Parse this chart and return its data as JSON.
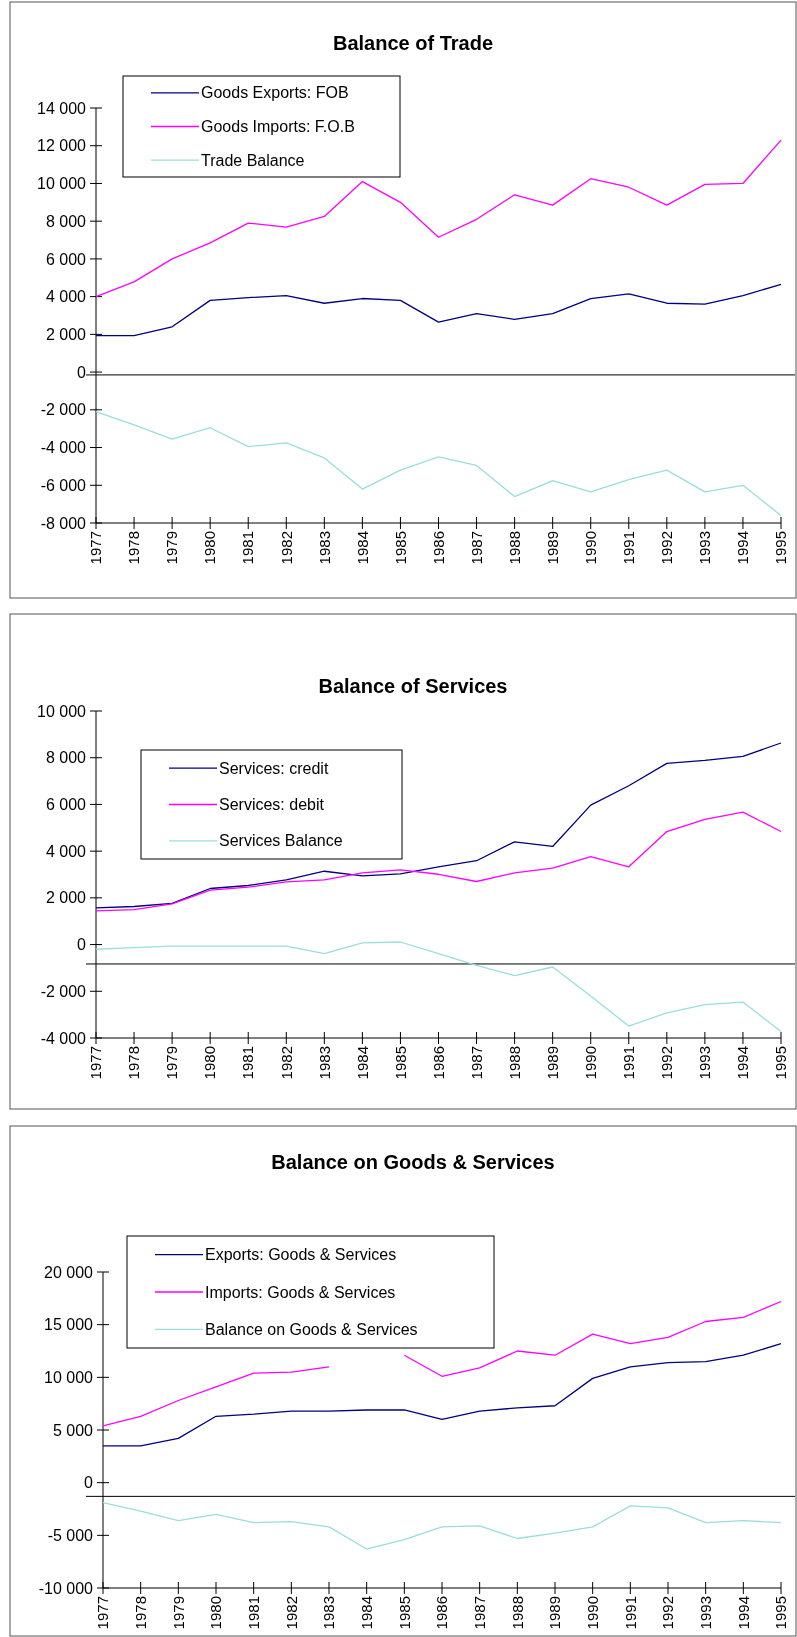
{
  "chart_data": [
    {
      "type": "line",
      "title": "Balance of Trade",
      "categories": [
        "1977",
        "1978",
        "1979",
        "1980",
        "1981",
        "1982",
        "1983",
        "1984",
        "1985",
        "1986",
        "1987",
        "1988",
        "1989",
        "1990",
        "1991",
        "1992",
        "1993",
        "1994",
        "1995"
      ],
      "series": [
        {
          "name": "Goods Exports: FOB",
          "color": "#000080",
          "values": [
            1930,
            1930,
            2400,
            3800,
            3950,
            4050,
            3650,
            3900,
            3800,
            2650,
            3100,
            2800,
            3100,
            3900,
            4150,
            3650,
            3600,
            4050,
            4650
          ]
        },
        {
          "name": "Goods Imports: F.O.B",
          "color": "#ff00ff",
          "values": [
            4000,
            4780,
            6000,
            6850,
            7900,
            7680,
            8250,
            10100,
            9000,
            7150,
            8100,
            9400,
            8850,
            10250,
            9800,
            8850,
            9950,
            10000,
            12300
          ]
        },
        {
          "name": "Trade Balance",
          "color": "#99dddd",
          "values": [
            -2100,
            -2800,
            -3550,
            -2950,
            -3950,
            -3750,
            -4550,
            -6200,
            -5200,
            -4500,
            -4950,
            -6600,
            -5750,
            -6350,
            -5700,
            -5200,
            -6350,
            -6000,
            -7600
          ]
        }
      ],
      "ylim": [
        -8000,
        14000
      ],
      "yticks": [
        {
          "value": -8000,
          "label": "-8 000"
        },
        {
          "value": -6000,
          "label": "-6 000"
        },
        {
          "value": -4000,
          "label": "-4 000"
        },
        {
          "value": -2000,
          "label": "-2 000"
        },
        {
          "value": 0,
          "label": "0"
        },
        {
          "value": 2000,
          "label": "2 000"
        },
        {
          "value": 4000,
          "label": "4 000"
        },
        {
          "value": 6000,
          "label": "6 000"
        },
        {
          "value": 8000,
          "label": "8 000"
        },
        {
          "value": 10000,
          "label": "10 000"
        },
        {
          "value": 12000,
          "label": "12 000"
        },
        {
          "value": 14000,
          "label": "14 000"
        }
      ],
      "ref_lines": [
        {
          "axis": "y",
          "value": -150,
          "color": "#000000"
        }
      ],
      "legend": "top left",
      "grid": false
    },
    {
      "type": "line",
      "title": "Balance of Services",
      "categories": [
        "1977",
        "1978",
        "1979",
        "1980",
        "1981",
        "1982",
        "1983",
        "1984",
        "1985",
        "1986",
        "1987",
        "1988",
        "1989",
        "1990",
        "1991",
        "1992",
        "1993",
        "1994",
        "1995"
      ],
      "series": [
        {
          "name": "Services: credit",
          "color": "#000080",
          "values": [
            1570,
            1630,
            1760,
            2400,
            2530,
            2770,
            3140,
            2940,
            3030,
            3330,
            3590,
            4400,
            4200,
            5970,
            6800,
            7760,
            7890,
            8060,
            8630
          ]
        },
        {
          "name": "Services: debit",
          "color": "#ff00ff",
          "values": [
            1440,
            1500,
            1740,
            2330,
            2460,
            2680,
            2770,
            3070,
            3200,
            3010,
            2700,
            3070,
            3270,
            3770,
            3330,
            4840,
            5360,
            5670,
            4840
          ]
        },
        {
          "name": "Services Balance",
          "color": "#99dddd",
          "values": [
            -200,
            -130,
            -70,
            -70,
            -70,
            -70,
            -390,
            70,
            110,
            -390,
            -890,
            -1330,
            -960,
            -2200,
            -3490,
            -2920,
            -2570,
            -2460,
            -3720
          ]
        }
      ],
      "ylim": [
        -4000,
        10000
      ],
      "yticks": [
        {
          "value": -4000,
          "label": "-4 000"
        },
        {
          "value": -2000,
          "label": "-2 000"
        },
        {
          "value": 0,
          "label": "0"
        },
        {
          "value": 2000,
          "label": "2 000"
        },
        {
          "value": 4000,
          "label": "4 000"
        },
        {
          "value": 6000,
          "label": "6 000"
        },
        {
          "value": 8000,
          "label": "8 000"
        },
        {
          "value": 10000,
          "label": "10 000"
        }
      ],
      "ref_lines": [
        {
          "axis": "y",
          "value": -830,
          "color": "#000000"
        }
      ],
      "legend": "top left",
      "grid": false
    },
    {
      "type": "line",
      "title": "Balance on Goods & Services",
      "categories": [
        "1977",
        "1978",
        "1979",
        "1980",
        "1981",
        "1982",
        "1983",
        "1984",
        "1985",
        "1986",
        "1987",
        "1988",
        "1989",
        "1990",
        "1991",
        "1992",
        "1993",
        "1994",
        "1995"
      ],
      "series": [
        {
          "name": "Exports: Goods & Services",
          "color": "#000080",
          "values": [
            3500,
            3500,
            4200,
            6300,
            6500,
            6800,
            6800,
            6900,
            6900,
            6000,
            6800,
            7100,
            7300,
            9900,
            11000,
            11400,
            11500,
            12100,
            13200
          ]
        },
        {
          "name": "Imports: Goods & Services",
          "color": "#ff00ff",
          "values": [
            5400,
            6300,
            7800,
            9100,
            10400,
            10500,
            11000,
            null,
            12100,
            10100,
            10900,
            12500,
            12100,
            14100,
            13200,
            13800,
            15300,
            15700,
            17200
          ]
        },
        {
          "name": "Balance on Goods & Services",
          "color": "#99dddd",
          "values": [
            -1900,
            -2700,
            -3600,
            -3000,
            -3800,
            -3700,
            -4200,
            -6300,
            -5400,
            -4200,
            -4100,
            -5300,
            -4800,
            -4200,
            -2200,
            -2400,
            -3800,
            -3600,
            -3800
          ]
        }
      ],
      "ylim": [
        -10000,
        20000
      ],
      "yticks": [
        {
          "value": -10000,
          "label": "-10 000"
        },
        {
          "value": -5000,
          "label": "-5 000"
        },
        {
          "value": 0,
          "label": "0"
        },
        {
          "value": 5000,
          "label": "5 000"
        },
        {
          "value": 10000,
          "label": "10 000"
        },
        {
          "value": 15000,
          "label": "15 000"
        },
        {
          "value": 20000,
          "label": "20 000"
        }
      ],
      "ref_lines": [
        {
          "axis": "y",
          "value": -1300,
          "color": "#000000"
        }
      ],
      "legend": "top left",
      "grid": false
    }
  ]
}
